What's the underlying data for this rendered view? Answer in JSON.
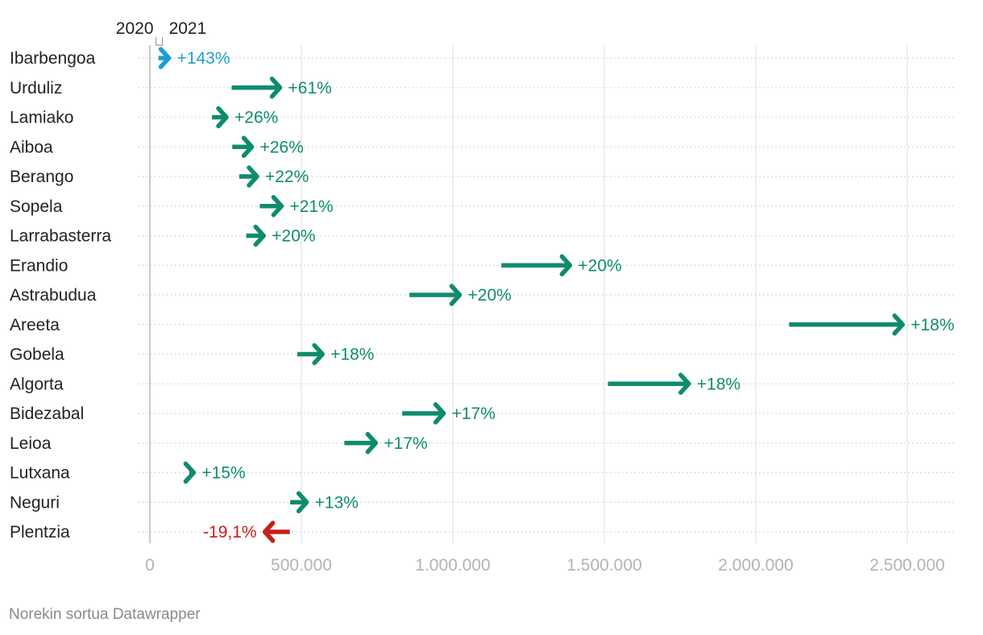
{
  "chart_data": {
    "type": "arrow",
    "legend": {
      "from": "2020",
      "to": "2021"
    },
    "x_ticks": [
      "0",
      "500.000",
      "1.000.000",
      "1.500.000",
      "2.000.000",
      "2.500.000"
    ],
    "x_tick_values": [
      0,
      500000,
      1000000,
      1500000,
      2000000,
      2500000
    ],
    "xlim": [
      0,
      2650000
    ],
    "grid": true,
    "colors": {
      "increase": "#0e8c6d",
      "top": "#1f9fd1",
      "decrease": "#c71e1d"
    },
    "rows": [
      {
        "name": "Ibarbengoa",
        "v2020": 28000,
        "v2021": 68000,
        "change": "+143%",
        "color_key": "top"
      },
      {
        "name": "Urduliz",
        "v2020": 270000,
        "v2021": 435000,
        "change": "+61%",
        "color_key": "increase"
      },
      {
        "name": "Lamiako",
        "v2020": 205000,
        "v2021": 258000,
        "change": "+26%",
        "color_key": "increase"
      },
      {
        "name": "Aiboa",
        "v2020": 272000,
        "v2021": 342000,
        "change": "+26%",
        "color_key": "increase"
      },
      {
        "name": "Berango",
        "v2020": 295000,
        "v2021": 359000,
        "change": "+22%",
        "color_key": "increase"
      },
      {
        "name": "Sopela",
        "v2020": 363000,
        "v2021": 440000,
        "change": "+21%",
        "color_key": "increase"
      },
      {
        "name": "Larrabasterra",
        "v2020": 318000,
        "v2021": 381000,
        "change": "+20%",
        "color_key": "increase"
      },
      {
        "name": "Erandio",
        "v2020": 1160000,
        "v2021": 1392000,
        "change": "+20%",
        "color_key": "increase"
      },
      {
        "name": "Astrabudua",
        "v2020": 857000,
        "v2021": 1028000,
        "change": "+20%",
        "color_key": "increase"
      },
      {
        "name": "Areeta",
        "v2020": 2110000,
        "v2021": 2490000,
        "change": "+18%",
        "color_key": "increase"
      },
      {
        "name": "Gobela",
        "v2020": 487000,
        "v2021": 575000,
        "change": "+18%",
        "color_key": "increase"
      },
      {
        "name": "Algorta",
        "v2020": 1512000,
        "v2021": 1784000,
        "change": "+18%",
        "color_key": "increase"
      },
      {
        "name": "Bidezabal",
        "v2020": 833000,
        "v2021": 975000,
        "change": "+17%",
        "color_key": "increase"
      },
      {
        "name": "Leioa",
        "v2020": 642000,
        "v2021": 751000,
        "change": "+17%",
        "color_key": "increase"
      },
      {
        "name": "Lutxana",
        "v2020": 130000,
        "v2021": 150000,
        "change": "+15%",
        "color_key": "increase"
      },
      {
        "name": "Neguri",
        "v2020": 463000,
        "v2021": 523000,
        "change": "+13%",
        "color_key": "increase"
      },
      {
        "name": "Plentzia",
        "v2020": 462000,
        "v2021": 374000,
        "change": "-19,1%",
        "color_key": "decrease"
      }
    ]
  },
  "footer": {
    "credit": "Norekin sortua Datawrapper"
  }
}
